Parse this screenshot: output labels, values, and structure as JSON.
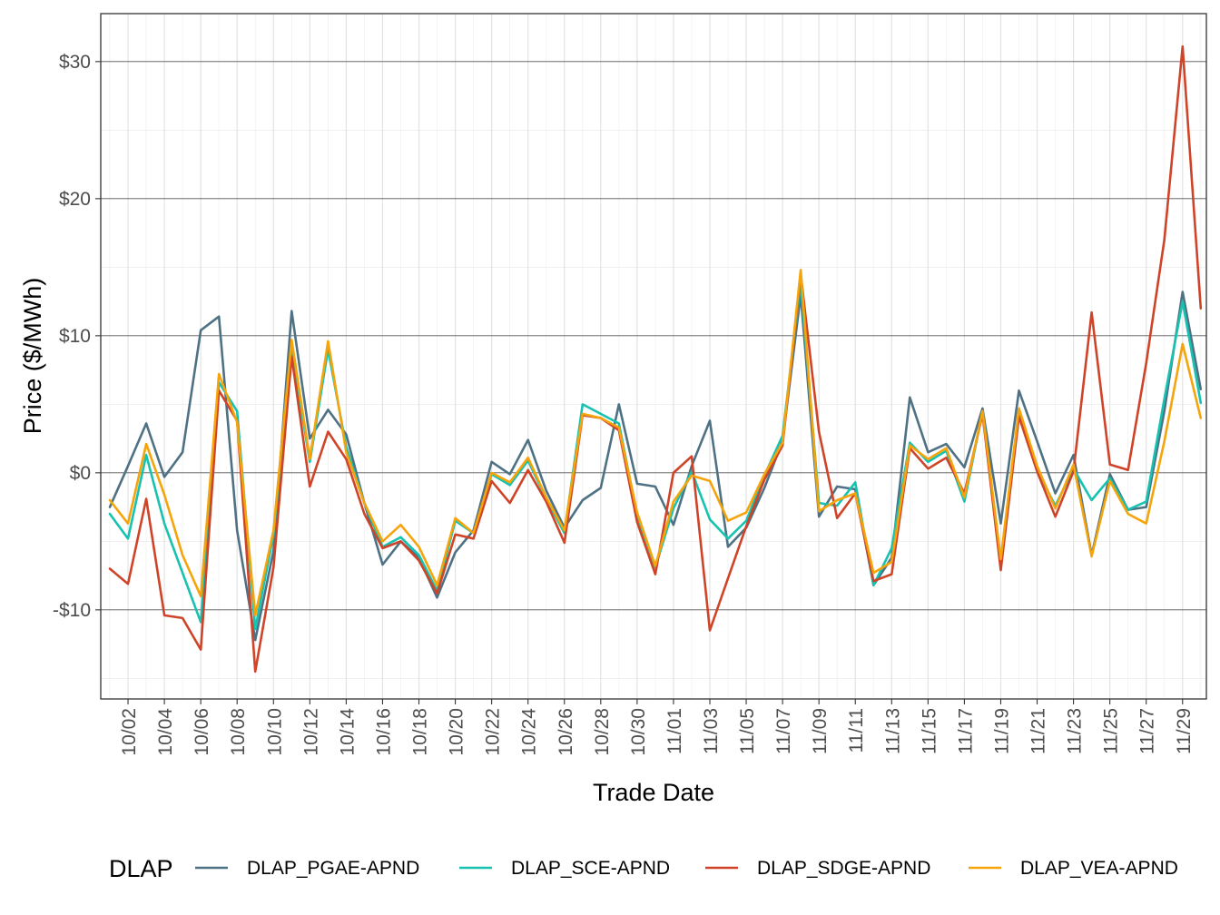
{
  "chart_data": {
    "type": "line",
    "xlabel": "Trade Date",
    "ylabel": "Price ($/MWh)",
    "ylim": [
      -16.5,
      33.5
    ],
    "y_ticks": [
      -10,
      0,
      10,
      20,
      30
    ],
    "y_tick_labels": [
      "-$10",
      "$0",
      "$10",
      "$20",
      "$30"
    ],
    "x_tick_labels": [
      "10/02",
      "10/04",
      "10/06",
      "10/08",
      "10/10",
      "10/12",
      "10/14",
      "10/16",
      "10/18",
      "10/20",
      "10/22",
      "10/24",
      "10/26",
      "10/28",
      "10/30",
      "11/01",
      "11/03",
      "11/05",
      "11/07",
      "11/09",
      "11/11",
      "11/13",
      "11/15",
      "11/17",
      "11/19",
      "11/21",
      "11/23",
      "11/25",
      "11/27",
      "11/29"
    ],
    "x": [
      "10/01",
      "10/02",
      "10/03",
      "10/04",
      "10/05",
      "10/06",
      "10/07",
      "10/08",
      "10/09",
      "10/10",
      "10/11",
      "10/12",
      "10/13",
      "10/14",
      "10/15",
      "10/16",
      "10/17",
      "10/18",
      "10/19",
      "10/20",
      "10/21",
      "10/22",
      "10/23",
      "10/24",
      "10/25",
      "10/26",
      "10/27",
      "10/28",
      "10/29",
      "10/30",
      "10/31",
      "11/01",
      "11/02",
      "11/03",
      "11/04",
      "11/05",
      "11/06",
      "11/07",
      "11/08",
      "11/09",
      "11/10",
      "11/11",
      "11/12",
      "11/13",
      "11/14",
      "11/15",
      "11/16",
      "11/17",
      "11/18",
      "11/19",
      "11/20",
      "11/21",
      "11/22",
      "11/23",
      "11/24",
      "11/25",
      "11/26",
      "11/27",
      "11/28",
      "11/29",
      "11/30"
    ],
    "grid": true,
    "legend": {
      "title": "DLAP",
      "position": "bottom"
    },
    "series": [
      {
        "name": "DLAP_PGAE-APND",
        "color": "#4e7184",
        "values": [
          -2.5,
          0.5,
          3.6,
          -0.3,
          1.5,
          10.4,
          11.4,
          -4.2,
          -12.2,
          -5.7,
          11.8,
          2.5,
          4.6,
          2.8,
          -2.2,
          -6.7,
          -5.0,
          -6.2,
          -9.1,
          -5.8,
          -4.2,
          0.8,
          -0.1,
          2.4,
          -1.3,
          -4.0,
          -2.0,
          -1.1,
          5.0,
          -0.8,
          -1.0,
          -3.8,
          0.5,
          3.8,
          -5.4,
          -4.0,
          -1.1,
          2.3,
          13.0,
          -3.2,
          -1.0,
          -1.2,
          -8.2,
          -6.2,
          5.5,
          1.5,
          2.1,
          0.4,
          4.7,
          -3.7,
          6.0,
          2.3,
          -1.5,
          1.3,
          -6.0,
          -0.1,
          -2.7,
          -2.5,
          4.5,
          13.2,
          6.1
        ]
      },
      {
        "name": "DLAP_SCE-APND",
        "color": "#17c2b0",
        "values": [
          -3.0,
          -4.8,
          1.3,
          -3.7,
          -7.3,
          -10.9,
          6.6,
          4.5,
          -11.4,
          -4.5,
          9.0,
          0.8,
          9.0,
          1.9,
          -2.2,
          -5.4,
          -4.7,
          -6.0,
          -8.6,
          -3.5,
          -4.4,
          -0.1,
          -0.9,
          0.9,
          -1.9,
          -4.4,
          5.0,
          4.3,
          3.6,
          -3.1,
          -6.9,
          -2.6,
          0.1,
          -3.4,
          -4.8,
          -3.5,
          -0.2,
          2.7,
          13.9,
          -2.2,
          -2.4,
          -0.7,
          -8.2,
          -5.5,
          2.2,
          0.8,
          1.6,
          -2.1,
          4.5,
          -6.5,
          4.3,
          0.2,
          -2.4,
          0.3,
          -2.0,
          -0.4,
          -2.7,
          -2.1,
          5.4,
          12.5,
          5.1
        ]
      },
      {
        "name": "DLAP_SDGE-APND",
        "color": "#cf4428",
        "values": [
          -7.0,
          -8.1,
          -1.9,
          -10.4,
          -10.6,
          -12.9,
          6.0,
          3.8,
          -14.5,
          -6.9,
          8.5,
          -1.0,
          3.0,
          1.0,
          -3.0,
          -5.5,
          -5.0,
          -6.4,
          -8.8,
          -4.5,
          -4.8,
          -0.6,
          -2.2,
          0.2,
          -2.1,
          -5.1,
          4.2,
          4.0,
          3.1,
          -3.6,
          -7.4,
          0.0,
          1.2,
          -11.5,
          -7.7,
          -3.9,
          -0.5,
          2.0,
          14.5,
          3.0,
          -3.3,
          -1.5,
          -7.9,
          -7.4,
          1.8,
          0.3,
          1.1,
          -1.5,
          4.3,
          -7.1,
          4.1,
          0.1,
          -3.2,
          0.1,
          11.7,
          0.6,
          0.2,
          8.0,
          17.0,
          31.1,
          12.0
        ]
      },
      {
        "name": "DLAP_VEA-APND",
        "color": "#f5a40b",
        "values": [
          -2.0,
          -3.7,
          2.1,
          -1.6,
          -6.0,
          -9.0,
          7.2,
          3.7,
          -10.4,
          -4.2,
          9.7,
          1.0,
          9.6,
          1.5,
          -2.2,
          -5.0,
          -3.8,
          -5.4,
          -8.2,
          -3.3,
          -4.4,
          0.0,
          -0.7,
          1.1,
          -1.8,
          -4.2,
          4.3,
          4.0,
          3.3,
          -2.9,
          -6.8,
          -2.1,
          -0.2,
          -0.6,
          -3.5,
          -2.9,
          -0.1,
          2.2,
          14.8,
          -2.8,
          -2.0,
          -1.5,
          -7.3,
          -6.5,
          2.0,
          1.0,
          1.8,
          -1.8,
          4.5,
          -6.3,
          4.7,
          0.5,
          -2.6,
          0.6,
          -6.1,
          -0.6,
          -3.0,
          -3.7,
          2.3,
          9.4,
          4.0
        ]
      }
    ]
  }
}
